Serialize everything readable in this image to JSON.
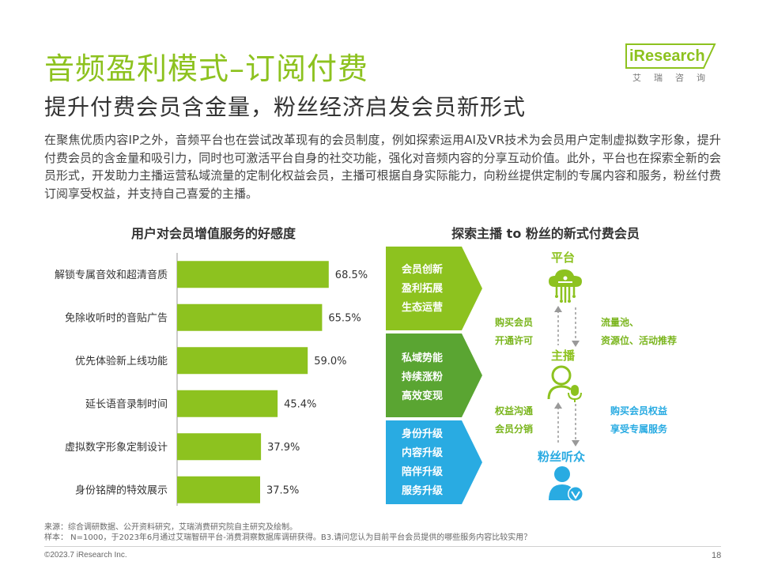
{
  "title": "音频盈利模式–订阅付费",
  "subtitle": "提升付费会员含金量，粉丝经济启发会员新形式",
  "intro": "在聚焦优质内容IP之外，音频平台也在尝试改革现有的会员制度，例如探索运用AI及VR技术为会员用户定制虚拟数字形象，提升付费会员的含金量和吸引力，同时也可激活平台自身的社交功能，强化对音频内容的分享互动价值。此外，平台也在探索全新的会员形式，开发助力主播运营私域流量的定制化权益会员，主播可根据自身实际能力，向粉丝提供定制的专属内容和服务，粉丝付费订阅享受权益，并支持自己喜爱的主播。",
  "logo": {
    "brand": "iResearch",
    "sub": "艾瑞咨询"
  },
  "left_chart_title": "用户对会员增值服务的好感度",
  "right_title": "探索主播 to 粉丝的新式付费会员",
  "chart_data": {
    "type": "bar",
    "orientation": "horizontal",
    "title": "用户对会员增值服务的好感度",
    "categories": [
      "解锁专属音效和超清音质",
      "免除收听时的音贴广告",
      "优先体验新上线功能",
      "延长语音录制时间",
      "虚拟数字形象定制设计",
      "身份铭牌的特效展示"
    ],
    "values": [
      68.5,
      65.5,
      59.0,
      45.4,
      37.9,
      37.5
    ],
    "value_labels": [
      "68.5%",
      "65.5%",
      "59.0%",
      "45.4%",
      "37.9%",
      "37.5%"
    ],
    "unit": "%",
    "xlim": [
      0,
      100
    ],
    "bar_color": "#8dc21f",
    "grid": false,
    "legend": "none"
  },
  "bands": [
    {
      "color": "#8dc21f",
      "items": [
        "会员创新",
        "盈利拓展",
        "生态运营"
      ]
    },
    {
      "color": "#5aa532",
      "items": [
        "私域势能",
        "持续涨粉",
        "高效变现"
      ]
    },
    {
      "color": "#29abe2",
      "items": [
        "身份升级",
        "内容升级",
        "陪伴升级",
        "服务升级"
      ]
    }
  ],
  "diagram": {
    "nodes": {
      "platform": "平台",
      "host": "主播",
      "fans": "粉丝听众"
    },
    "annotations": {
      "buy_membership": [
        "购买会员",
        "开通许可"
      ],
      "traffic": [
        "流量池、",
        "资源位、活动推荐"
      ],
      "rights": [
        "权益沟通",
        "会员分销"
      ],
      "buy_rights": [
        "购买会员权益",
        "享受专属服务"
      ]
    },
    "icons": [
      "cloud-platform-icon",
      "host-microphone-icon",
      "fan-user-icon"
    ]
  },
  "colors": {
    "accent_green": "#8dc21f",
    "dark_green": "#5aa532",
    "blue": "#29abe2"
  },
  "footer": {
    "source": "来源：综合调研数据、公开资料研究，艾瑞消费研究院自主研究及绘制。",
    "sample": "样本： N=1000，于2023年6月通过艾瑞智研平台-消费洞察数据库调研获得。B3.请问您认为目前平台会员提供的哪些服务内容比较实用？",
    "copyright": "©2023.7 iResearch Inc.",
    "page": "18"
  }
}
